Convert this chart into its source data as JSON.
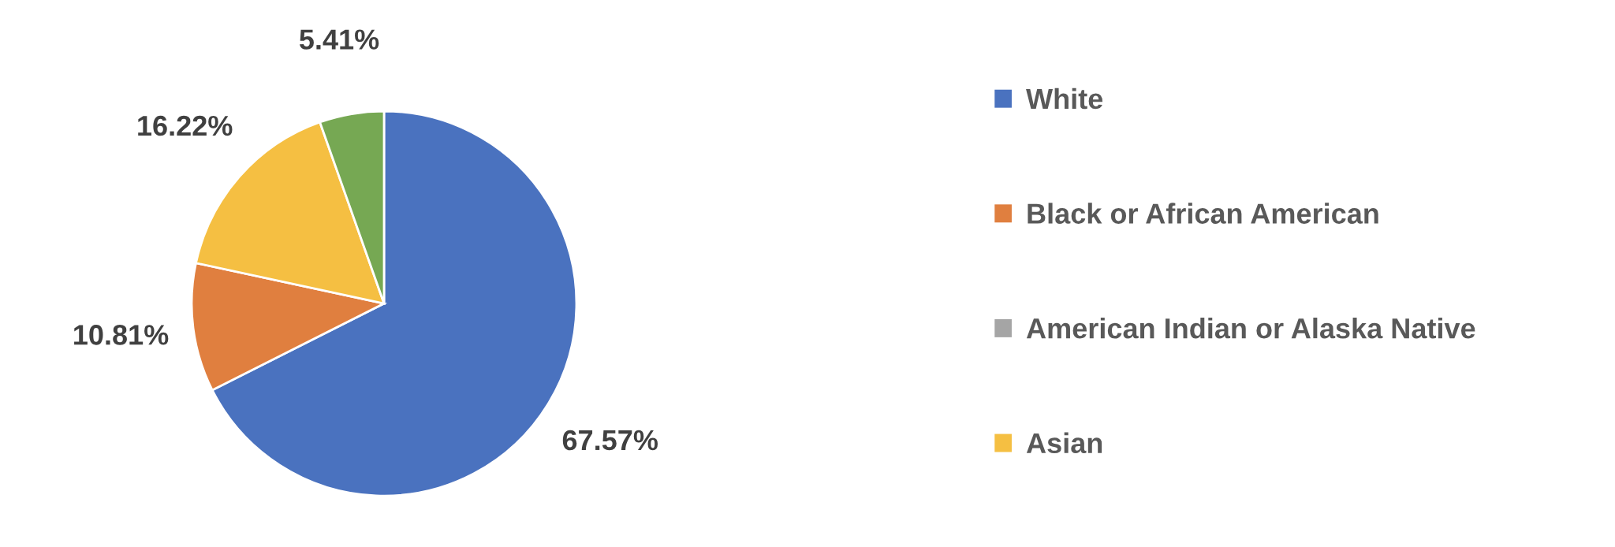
{
  "chart_data": {
    "type": "pie",
    "categories": [
      "White",
      "Black or African American",
      "American Indian or Alaska Native",
      "Asian",
      null
    ],
    "values": [
      67.57,
      10.81,
      0,
      16.22,
      5.41
    ],
    "colors": [
      "#4a72bf",
      "#e07f3f",
      "#a5a5a5",
      "#f5bf42",
      "#76a853"
    ],
    "value_labels": [
      "67.57%",
      "10.81%",
      null,
      "16.22%",
      "5.41%"
    ],
    "legend": "right"
  }
}
